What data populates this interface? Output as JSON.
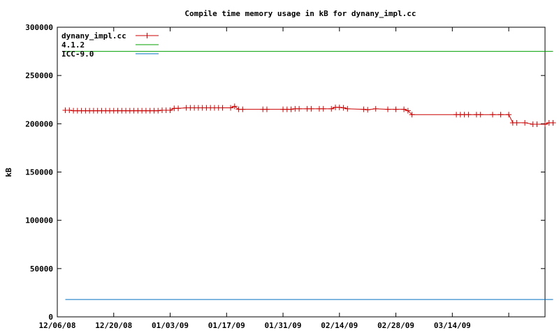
{
  "chart_data": {
    "type": "line",
    "title": "Compile time memory usage in kB for dynany_impl.cc",
    "ylabel": "kB",
    "xlabel": "",
    "ylim": [
      0,
      300000
    ],
    "xlim": [
      "2008-12-06",
      "2009-04-06"
    ],
    "yticks": [
      "0",
      "50000",
      "100000",
      "150000",
      "200000",
      "250000",
      "300000"
    ],
    "xticks": [
      {
        "date": "2008-12-06",
        "label": "12/06/08"
      },
      {
        "date": "2008-12-20",
        "label": "12/20/08"
      },
      {
        "date": "2009-01-03",
        "label": "01/03/09"
      },
      {
        "date": "2009-01-17",
        "label": "01/17/09"
      },
      {
        "date": "2009-01-31",
        "label": "01/31/09"
      },
      {
        "date": "2009-02-14",
        "label": "02/14/09"
      },
      {
        "date": "2009-02-28",
        "label": "02/28/09"
      },
      {
        "date": "2009-03-14",
        "label": "03/14/09"
      }
    ],
    "grid": false,
    "legend_position": "top-left",
    "series": [
      {
        "name": "dynany_impl.cc",
        "color": "#cc0000",
        "marker": "plus",
        "points": [
          [
            "2008-12-08",
            214000
          ],
          [
            "2008-12-09",
            214000
          ],
          [
            "2008-12-10",
            213500
          ],
          [
            "2008-12-11",
            213500
          ],
          [
            "2008-12-12",
            213500
          ],
          [
            "2008-12-13",
            213500
          ],
          [
            "2008-12-14",
            213500
          ],
          [
            "2008-12-15",
            213500
          ],
          [
            "2008-12-16",
            213500
          ],
          [
            "2008-12-17",
            213500
          ],
          [
            "2008-12-18",
            213500
          ],
          [
            "2008-12-19",
            213500
          ],
          [
            "2008-12-20",
            213500
          ],
          [
            "2008-12-21",
            213500
          ],
          [
            "2008-12-22",
            213500
          ],
          [
            "2008-12-23",
            213500
          ],
          [
            "2008-12-24",
            213500
          ],
          [
            "2008-12-25",
            213500
          ],
          [
            "2008-12-26",
            213500
          ],
          [
            "2008-12-27",
            213500
          ],
          [
            "2008-12-28",
            213500
          ],
          [
            "2008-12-29",
            213500
          ],
          [
            "2008-12-30",
            213500
          ],
          [
            "2008-12-31",
            213500
          ],
          [
            "2009-01-01",
            214000
          ],
          [
            "2009-01-02",
            214000
          ],
          [
            "2009-01-03",
            214000
          ],
          [
            "2009-01-04",
            216000
          ],
          [
            "2009-01-05",
            216000
          ],
          [
            "2009-01-07",
            216500
          ],
          [
            "2009-01-08",
            216500
          ],
          [
            "2009-01-09",
            216500
          ],
          [
            "2009-01-10",
            216500
          ],
          [
            "2009-01-11",
            216500
          ],
          [
            "2009-01-12",
            216500
          ],
          [
            "2009-01-13",
            216500
          ],
          [
            "2009-01-14",
            216500
          ],
          [
            "2009-01-15",
            216500
          ],
          [
            "2009-01-16",
            216500
          ],
          [
            "2009-01-18",
            216500
          ],
          [
            "2009-01-19",
            218000
          ],
          [
            "2009-01-20",
            215000
          ],
          [
            "2009-01-21",
            215000
          ],
          [
            "2009-01-26",
            215000
          ],
          [
            "2009-01-27",
            215000
          ],
          [
            "2009-01-31",
            215000
          ],
          [
            "2009-02-01",
            215000
          ],
          [
            "2009-02-02",
            215000
          ],
          [
            "2009-02-03",
            215500
          ],
          [
            "2009-02-04",
            215500
          ],
          [
            "2009-02-06",
            215500
          ],
          [
            "2009-02-07",
            215500
          ],
          [
            "2009-02-09",
            215500
          ],
          [
            "2009-02-10",
            215500
          ],
          [
            "2009-02-12",
            215500
          ],
          [
            "2009-02-13",
            217000
          ],
          [
            "2009-02-14",
            217000
          ],
          [
            "2009-02-15",
            216500
          ],
          [
            "2009-02-16",
            215500
          ],
          [
            "2009-02-20",
            215000
          ],
          [
            "2009-02-21",
            214500
          ],
          [
            "2009-02-23",
            215500
          ],
          [
            "2009-02-26",
            215000
          ],
          [
            "2009-02-28",
            215000
          ],
          [
            "2009-03-02",
            215000
          ],
          [
            "2009-03-03",
            213500
          ],
          [
            "2009-03-04",
            209500
          ],
          [
            "2009-03-15",
            209500
          ],
          [
            "2009-03-16",
            209500
          ],
          [
            "2009-03-17",
            209500
          ],
          [
            "2009-03-18",
            209500
          ],
          [
            "2009-03-20",
            209500
          ],
          [
            "2009-03-21",
            209500
          ],
          [
            "2009-03-24",
            209500
          ],
          [
            "2009-03-26",
            209500
          ],
          [
            "2009-03-28",
            209500
          ],
          [
            "2009-03-29",
            201000
          ],
          [
            "2009-03-30",
            201000
          ],
          [
            "2009-04-01",
            201000
          ],
          [
            "2009-04-03",
            199500
          ],
          [
            "2009-04-04",
            199500
          ],
          [
            "2009-04-06",
            199500
          ],
          [
            "2009-04-07",
            201000
          ],
          [
            "2009-04-08",
            201000
          ]
        ]
      },
      {
        "name": "4.1.2",
        "color": "#00a000",
        "marker": "none",
        "points": [
          [
            "2008-12-08",
            275000
          ],
          [
            "2009-04-08",
            275000
          ]
        ]
      },
      {
        "name": "ICC-9.0",
        "color": "#0070c0",
        "marker": "none",
        "points": [
          [
            "2008-12-08",
            18000
          ],
          [
            "2009-04-08",
            18000
          ]
        ]
      }
    ]
  }
}
